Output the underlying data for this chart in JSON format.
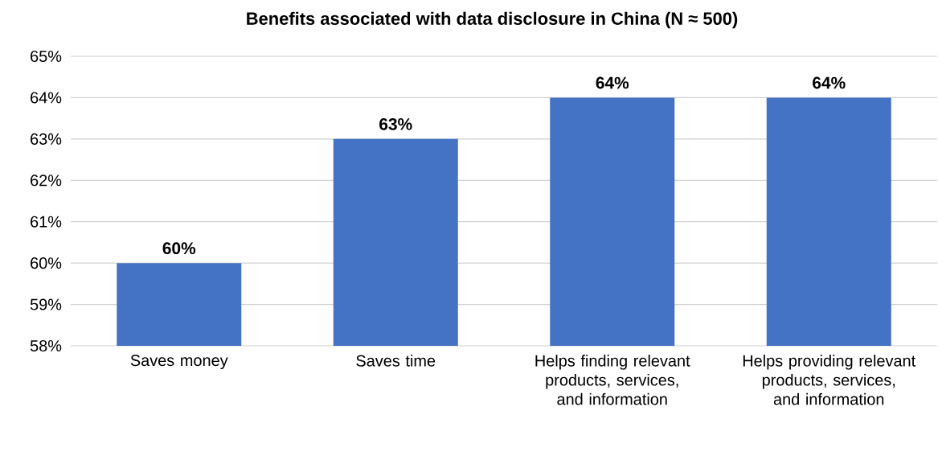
{
  "chart_data": {
    "type": "bar",
    "title": "Benefits associated with data disclosure in China (N ≈ 500)",
    "categories": [
      "Saves money",
      "Saves time",
      "Helps finding relevant products, services, and information",
      "Helps providing relevant products, services, and information"
    ],
    "values": [
      60,
      63,
      64,
      64
    ],
    "value_labels": [
      "60%",
      "63%",
      "64%",
      "64%"
    ],
    "color": "#4472c4",
    "ylim": [
      58,
      65
    ],
    "yticks": [
      {
        "value": 58,
        "label": "58%"
      },
      {
        "value": 59,
        "label": "59%"
      },
      {
        "value": 60,
        "label": "60%"
      },
      {
        "value": 61,
        "label": "61%"
      },
      {
        "value": 62,
        "label": "62%"
      },
      {
        "value": 63,
        "label": "63%"
      },
      {
        "value": 64,
        "label": "64%"
      },
      {
        "value": 65,
        "label": "65%"
      }
    ],
    "grid": "y"
  }
}
